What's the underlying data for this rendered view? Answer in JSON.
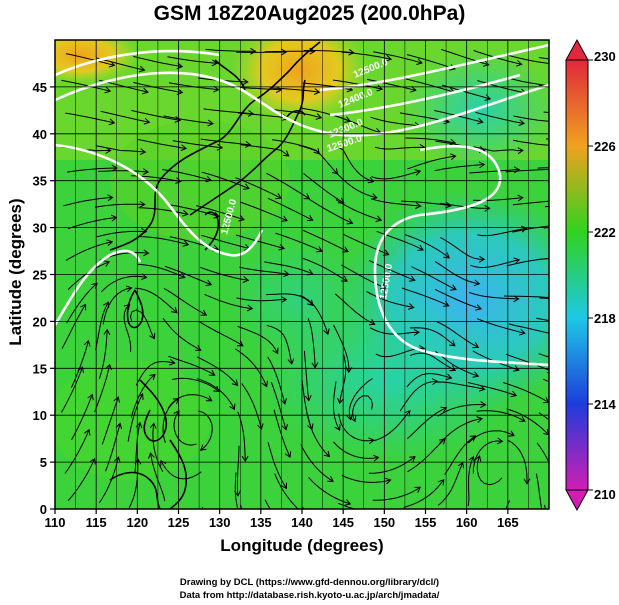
{
  "title": "GSM 18Z20Aug2025 (200.0hPa)",
  "xlabel": "Longitude (degrees)",
  "ylabel": "Latitude (degrees)",
  "credits": {
    "line1": "Drawing by DCL (https://www.gfd-dennou.org/library/dcl/)",
    "line2": "Data from http://database.rish.kyoto-u.ac.jp/arch/jmadata/"
  },
  "chart_data": {
    "type": "heatmap",
    "x_ticks": [
      "110",
      "115",
      "120",
      "125",
      "130",
      "135",
      "140",
      "145",
      "150",
      "155",
      "160",
      "165"
    ],
    "y_ticks": [
      "0",
      "5",
      "10",
      "15",
      "20",
      "25",
      "30",
      "35",
      "40",
      "45"
    ],
    "xlim": [
      110,
      170
    ],
    "ylim": [
      0,
      50
    ],
    "grid": true,
    "colorbar": {
      "labels": [
        "230",
        "226",
        "222",
        "218",
        "214",
        "210"
      ],
      "range": [
        210,
        230
      ],
      "colors": {
        "230": "#e0283c",
        "226": "#f0a21e",
        "222": "#30d21e",
        "218": "#1ec8e6",
        "214": "#1e3cdc",
        "210": "#d21eb4"
      }
    },
    "contour_labels": [
      "12500.0",
      "12400.0",
      "12300.0",
      "12500.0",
      "12500.0",
      "12500.0"
    ],
    "field_colors": {
      "warm": "#f2a21e",
      "mid": "#3cd23c",
      "cool": "#28c8d2",
      "contour": "#ffffff",
      "streamline": "#000000",
      "coast": "#000000"
    }
  }
}
